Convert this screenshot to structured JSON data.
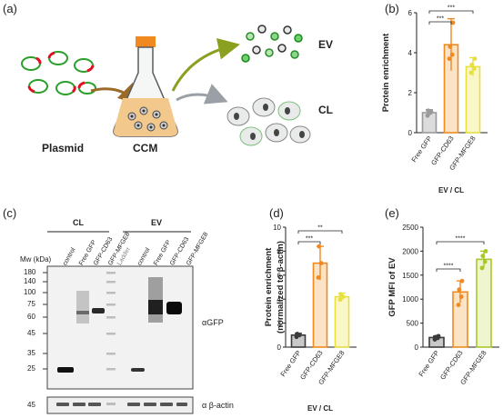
{
  "panels": {
    "a": "(a)",
    "b": "(b)",
    "c": "(c)",
    "d": "(d)",
    "e": "(e)"
  },
  "schematic": {
    "plasmid_label": "Plasmid",
    "ccm_label": "CCM",
    "ev_label": "EV",
    "cl_label": "CL",
    "colors": {
      "plasmid_green": "#2aa02a",
      "plasmid_red": "#e01020",
      "flask_cap": "#f08a20",
      "medium": "#f3c88c",
      "arrow_brown": "#9a6a2a",
      "arrow_olive": "#8aa020",
      "cell_fill": "#e8ebea"
    }
  },
  "western": {
    "mw_header": "Mw (kDa)",
    "mw_markers": [
      "180",
      "140",
      "100",
      "75",
      "60",
      "45",
      "35",
      "25"
    ],
    "group_cl": "CL",
    "group_ev": "EV",
    "lanes": [
      "control",
      "Free GFP",
      "GFP-CD63",
      "GFP-MFGE8",
      "Ladder",
      "control",
      "Free GFP",
      "GFP-CD63",
      "GFP-MFGE8"
    ],
    "label_gfp": "αGFP",
    "label_actin": "α β-actin",
    "actin_mw": "45"
  },
  "chart_data": [
    {
      "panel": "b",
      "type": "bar",
      "categories": [
        "Free GFP",
        "GFP-CD63",
        "GFP-MFGE8"
      ],
      "values": [
        1.0,
        4.4,
        3.3
      ],
      "errors": [
        0.15,
        1.3,
        0.45
      ],
      "points": [
        [
          0.85,
          1.0,
          1.1,
          1.05
        ],
        [
          3.7,
          3.9,
          4.3,
          5.5
        ],
        [
          3.0,
          3.2,
          3.4,
          3.7
        ]
      ],
      "colors": [
        "#9a9a9a",
        "#f08a20",
        "#e6e040"
      ],
      "fills": [
        "#dcdcdc",
        "#fbe3c6",
        "#f9f7c8"
      ],
      "xlabel": "EV / CL",
      "ylabel": "Protein enrichment",
      "ylim": [
        0,
        6
      ],
      "yticks": [
        "0",
        "2",
        "4",
        "6"
      ],
      "significance": [
        {
          "from": 0,
          "to": 1,
          "label": "***"
        },
        {
          "from": 0,
          "to": 2,
          "label": "***"
        }
      ]
    },
    {
      "panel": "d",
      "type": "bar",
      "categories": [
        "Free GFP",
        "GFP-CD63",
        "GFP-MFGE8"
      ],
      "values": [
        1.0,
        7.0,
        4.2
      ],
      "errors": [
        0.15,
        1.4,
        0.3
      ],
      "points": [
        [
          0.85,
          1.0,
          1.1
        ],
        [
          5.8,
          7.0,
          8.4
        ],
        [
          3.95,
          4.2,
          4.4
        ]
      ],
      "colors": [
        "#3a3a3a",
        "#f08a20",
        "#e6e040"
      ],
      "fills": [
        "#c8c8c8",
        "#fbe3c6",
        "#f9f7c8"
      ],
      "xlabel": "EV / CL",
      "ylabel": "Protein enrichment",
      "ylabel2": "(normalized to β-actin)",
      "ylim": [
        0,
        10
      ],
      "yticks": [
        "0",
        "2",
        "4",
        "6",
        "8",
        "10"
      ],
      "significance": [
        {
          "from": 0,
          "to": 1,
          "label": "***"
        },
        {
          "from": 0,
          "to": 2,
          "label": "**"
        }
      ]
    },
    {
      "panel": "e",
      "type": "bar",
      "categories": [
        "Free GFP",
        "GFP-CD63",
        "GFP-MFGE8"
      ],
      "values": [
        200,
        1150,
        1830
      ],
      "errors": [
        30,
        230,
        170
      ],
      "points": [
        [
          160,
          190,
          210,
          230
        ],
        [
          880,
          1050,
          1200,
          1380
        ],
        [
          1650,
          1780,
          1900,
          2000
        ]
      ],
      "colors": [
        "#3a3a3a",
        "#f08a20",
        "#a8c82a"
      ],
      "fills": [
        "#c8c8c8",
        "#fbe3c6",
        "#eef5cf"
      ],
      "ylabel": "GFP MFI of EV",
      "ylim": [
        0,
        2500
      ],
      "yticks": [
        "0",
        "500",
        "1000",
        "1500",
        "2000",
        "2500"
      ],
      "significance": [
        {
          "from": 0,
          "to": 1,
          "label": "****"
        },
        {
          "from": 0,
          "to": 2,
          "label": "****"
        }
      ]
    }
  ]
}
